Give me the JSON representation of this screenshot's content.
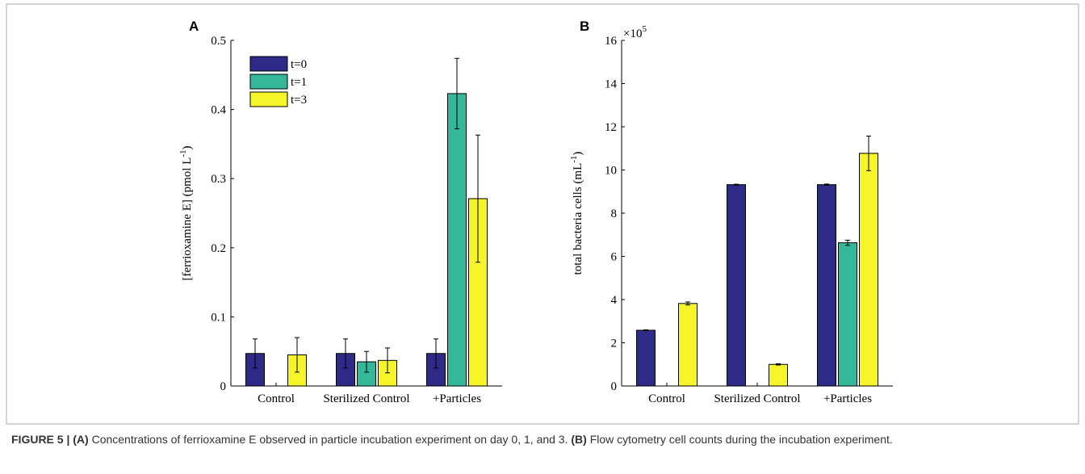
{
  "chart_data": [
    {
      "type": "bar",
      "panel_label": "A",
      "ylabel": {
        "text": "[ferrioxamine E] (pmol L",
        "sup": "-1",
        "end": ")"
      },
      "categories": [
        "Control",
        "Sterilized Control",
        "+Particles"
      ],
      "ylim": [
        0,
        0.5
      ],
      "yticks": [
        0,
        0.1,
        0.2,
        0.3,
        0.4,
        0.5
      ],
      "legend": "top-left",
      "series": [
        {
          "name": "t=0",
          "color": "#2e2a87",
          "values": [
            0.047,
            0.047,
            0.047
          ],
          "errors": [
            0.021,
            0.021,
            0.021
          ]
        },
        {
          "name": "t=1",
          "color": "#35b79a",
          "values": [
            null,
            0.035,
            0.423
          ],
          "errors": [
            null,
            0.015,
            0.051
          ]
        },
        {
          "name": "t=3",
          "color": "#f5f52a",
          "values": [
            0.045,
            0.037,
            0.271
          ],
          "errors": [
            0.025,
            0.018,
            0.092
          ]
        }
      ]
    },
    {
      "type": "bar",
      "panel_label": "B",
      "ylabel": {
        "text": "total bacteria cells (mL",
        "sup": "-1",
        "end": ")"
      },
      "axis_multiplier": {
        "base": "×10",
        "exponent": "5"
      },
      "categories": [
        "Control",
        "Sterilized Control",
        "+Particles"
      ],
      "ylim": [
        0,
        16
      ],
      "yticks": [
        0,
        2,
        4,
        6,
        8,
        10,
        12,
        14,
        16
      ],
      "series": [
        {
          "name": "t=0",
          "color": "#2e2a87",
          "values": [
            2.58,
            9.32,
            9.32
          ],
          "errors": [
            0.02,
            0.02,
            0.03
          ]
        },
        {
          "name": "t=1",
          "color": "#35b79a",
          "values": [
            null,
            null,
            6.63
          ],
          "errors": [
            null,
            null,
            0.12
          ]
        },
        {
          "name": "t=3",
          "color": "#f5f52a",
          "values": [
            3.82,
            1.0,
            10.77
          ],
          "errors": [
            0.07,
            0.03,
            0.8
          ]
        }
      ]
    }
  ],
  "caption": [
    {
      "text": "FIGURE 5 | ",
      "bold": true
    },
    {
      "text": "(A)",
      "bold": true
    },
    {
      "text": " Concentrations of ferrioxamine E observed in particle incubation experiment on day 0, 1, and 3. ",
      "bold": false
    },
    {
      "text": "(B)",
      "bold": true
    },
    {
      "text": " Flow cytometry cell counts during the incubation experiment.",
      "bold": false
    }
  ]
}
